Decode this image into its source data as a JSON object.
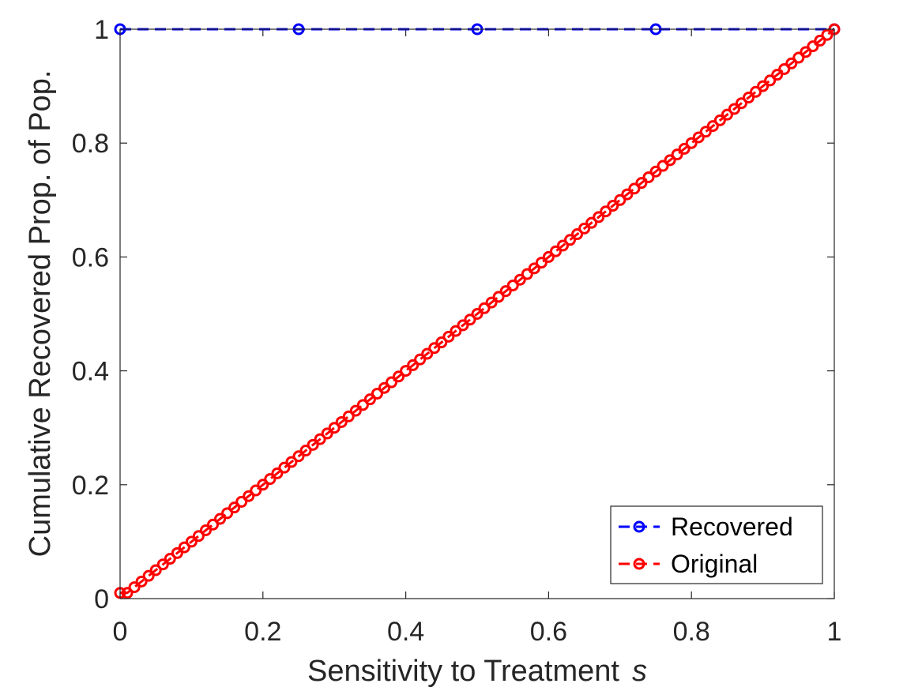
{
  "chart_data": {
    "type": "line",
    "title": "",
    "xlabel": "Sensitivity to Treatment",
    "xlabel_symbol": "s",
    "ylabel": "Cumulative Recovered Prop. of Pop.",
    "xlim": [
      0,
      1
    ],
    "ylim": [
      0,
      1
    ],
    "xticks": [
      0,
      0.2,
      0.4,
      0.6,
      0.8,
      1
    ],
    "yticks": [
      0,
      0.2,
      0.4,
      0.6,
      0.8,
      1
    ],
    "xtick_labels": [
      "0",
      "0.2",
      "0.4",
      "0.6",
      "0.8",
      "1"
    ],
    "ytick_labels": [
      "0",
      "0.2",
      "0.4",
      "0.6",
      "0.8",
      "1"
    ],
    "grid": false,
    "legend_position": "bottom-right",
    "series": [
      {
        "name": "Recovered",
        "color": "#0000ff",
        "line_style": "dashed",
        "marker": "circle",
        "x": [
          0,
          0.25,
          0.5,
          0.75,
          1
        ],
        "y": [
          1,
          1,
          1,
          1,
          1
        ]
      },
      {
        "name": "Original",
        "color": "#ff0000",
        "line_style": "dashed",
        "marker": "circle",
        "x": [
          0,
          0.01,
          0.02,
          0.03,
          0.04,
          0.05,
          0.06,
          0.07,
          0.08,
          0.09,
          0.1,
          0.11,
          0.12,
          0.13,
          0.14,
          0.15,
          0.16,
          0.17,
          0.18,
          0.19,
          0.2,
          0.21,
          0.22,
          0.23,
          0.24,
          0.25,
          0.26,
          0.27,
          0.28,
          0.29,
          0.3,
          0.31,
          0.32,
          0.33,
          0.34,
          0.35,
          0.36,
          0.37,
          0.38,
          0.39,
          0.4,
          0.41,
          0.42,
          0.43,
          0.44,
          0.45,
          0.46,
          0.47,
          0.48,
          0.49,
          0.5,
          0.51,
          0.52,
          0.53,
          0.54,
          0.55,
          0.56,
          0.57,
          0.58,
          0.59,
          0.6,
          0.61,
          0.62,
          0.63,
          0.64,
          0.65,
          0.66,
          0.67,
          0.68,
          0.69,
          0.7,
          0.71,
          0.72,
          0.73,
          0.74,
          0.75,
          0.76,
          0.77,
          0.78,
          0.79,
          0.8,
          0.81,
          0.82,
          0.83,
          0.84,
          0.85,
          0.86,
          0.87,
          0.88,
          0.89,
          0.9,
          0.91,
          0.92,
          0.93,
          0.94,
          0.95,
          0.96,
          0.97,
          0.98,
          0.99,
          1
        ],
        "y": [
          0.01,
          0.01,
          0.02,
          0.03,
          0.04,
          0.05,
          0.06,
          0.07,
          0.08,
          0.09,
          0.1,
          0.11,
          0.12,
          0.13,
          0.14,
          0.15,
          0.16,
          0.17,
          0.18,
          0.19,
          0.2,
          0.21,
          0.22,
          0.23,
          0.24,
          0.25,
          0.26,
          0.27,
          0.28,
          0.29,
          0.3,
          0.31,
          0.32,
          0.33,
          0.34,
          0.35,
          0.36,
          0.37,
          0.38,
          0.39,
          0.4,
          0.41,
          0.42,
          0.43,
          0.44,
          0.45,
          0.46,
          0.47,
          0.48,
          0.49,
          0.5,
          0.51,
          0.52,
          0.53,
          0.54,
          0.55,
          0.56,
          0.57,
          0.58,
          0.59,
          0.6,
          0.61,
          0.62,
          0.63,
          0.64,
          0.65,
          0.66,
          0.67,
          0.68,
          0.69,
          0.7,
          0.71,
          0.72,
          0.73,
          0.74,
          0.75,
          0.76,
          0.77,
          0.78,
          0.79,
          0.8,
          0.81,
          0.82,
          0.83,
          0.84,
          0.85,
          0.86,
          0.87,
          0.88,
          0.89,
          0.9,
          0.91,
          0.92,
          0.93,
          0.94,
          0.95,
          0.96,
          0.97,
          0.98,
          0.99,
          1
        ]
      }
    ]
  }
}
